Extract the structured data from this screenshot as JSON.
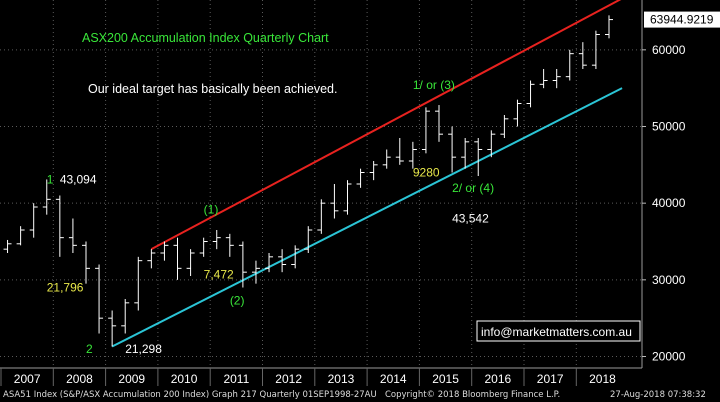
{
  "chart_data": {
    "type": "candlestick",
    "title": "ASX200 Accumulation Index Quarterly Chart",
    "subtitle": "Our ideal target has basically been achieved.",
    "x_ticks": [
      "2007",
      "2008",
      "2009",
      "2010",
      "2011",
      "2012",
      "2013",
      "2014",
      "2015",
      "2016",
      "2017",
      "2018"
    ],
    "y_ticks": [
      20000,
      30000,
      40000,
      50000,
      60000
    ],
    "y_tick_labels": [
      "20000",
      "30000",
      "40000",
      "50000",
      "60000"
    ],
    "ylim": [
      18500,
      66500
    ],
    "last_value": 63944.9219,
    "last_value_label": "63944.9219",
    "colors": {
      "background": "#000000",
      "bars": "#ffffff",
      "upper_channel": "#e8221f",
      "lower_channel": "#2bc5d6",
      "grid": "#5a5a5a",
      "annotation_green": "#39e639",
      "annotation_yellow": "#e8e84a",
      "annotation_white": "#ffffff"
    },
    "quarters": [
      {
        "q": "2007Q1",
        "o": 34000,
        "h": 35200,
        "l": 33500,
        "c": 34700
      },
      {
        "q": "2007Q2",
        "o": 34700,
        "h": 37000,
        "l": 34500,
        "c": 36500
      },
      {
        "q": "2007Q3",
        "o": 36500,
        "h": 40000,
        "l": 35500,
        "c": 39500
      },
      {
        "q": "2007Q4",
        "o": 39500,
        "h": 43094,
        "l": 38500,
        "c": 40500
      },
      {
        "q": "2008Q1",
        "o": 40500,
        "h": 41000,
        "l": 33000,
        "c": 35500
      },
      {
        "q": "2008Q2",
        "o": 35500,
        "h": 38000,
        "l": 33500,
        "c": 34500
      },
      {
        "q": "2008Q3",
        "o": 34500,
        "h": 35000,
        "l": 29500,
        "c": 31500
      },
      {
        "q": "2008Q4",
        "o": 31500,
        "h": 32000,
        "l": 23000,
        "c": 25000
      },
      {
        "q": "2009Q1",
        "o": 25000,
        "h": 26000,
        "l": 21298,
        "c": 24000
      },
      {
        "q": "2009Q2",
        "o": 24000,
        "h": 27500,
        "l": 23000,
        "c": 27000
      },
      {
        "q": "2009Q3",
        "o": 27000,
        "h": 33000,
        "l": 26000,
        "c": 32500
      },
      {
        "q": "2009Q4",
        "o": 32500,
        "h": 34000,
        "l": 31500,
        "c": 33500
      },
      {
        "q": "2010Q1",
        "o": 33500,
        "h": 35000,
        "l": 32500,
        "c": 34500
      },
      {
        "q": "2010Q2",
        "o": 34500,
        "h": 35500,
        "l": 30000,
        "c": 31500
      },
      {
        "q": "2010Q3",
        "o": 31500,
        "h": 34000,
        "l": 30500,
        "c": 33500
      },
      {
        "q": "2010Q4",
        "o": 33500,
        "h": 35500,
        "l": 33000,
        "c": 35000
      },
      {
        "q": "2011Q1",
        "o": 35000,
        "h": 36500,
        "l": 34000,
        "c": 35500
      },
      {
        "q": "2011Q2",
        "o": 35500,
        "h": 36000,
        "l": 33000,
        "c": 34500
      },
      {
        "q": "2011Q3",
        "o": 34500,
        "h": 35000,
        "l": 29000,
        "c": 31000
      },
      {
        "q": "2011Q4",
        "o": 31000,
        "h": 32500,
        "l": 29500,
        "c": 31500
      },
      {
        "q": "2012Q1",
        "o": 31500,
        "h": 33500,
        "l": 31000,
        "c": 33000
      },
      {
        "q": "2012Q2",
        "o": 33000,
        "h": 34000,
        "l": 31000,
        "c": 32000
      },
      {
        "q": "2012Q3",
        "o": 32000,
        "h": 34500,
        "l": 31500,
        "c": 34000
      },
      {
        "q": "2012Q4",
        "o": 34000,
        "h": 37000,
        "l": 33500,
        "c": 36500
      },
      {
        "q": "2013Q1",
        "o": 36500,
        "h": 40500,
        "l": 36000,
        "c": 40000
      },
      {
        "q": "2013Q2",
        "o": 40000,
        "h": 42500,
        "l": 38000,
        "c": 39000
      },
      {
        "q": "2013Q3",
        "o": 39000,
        "h": 43000,
        "l": 38500,
        "c": 42500
      },
      {
        "q": "2013Q4",
        "o": 42500,
        "h": 44500,
        "l": 42000,
        "c": 44000
      },
      {
        "q": "2014Q1",
        "o": 44000,
        "h": 45500,
        "l": 43000,
        "c": 45000
      },
      {
        "q": "2014Q2",
        "o": 45000,
        "h": 47000,
        "l": 44500,
        "c": 46000
      },
      {
        "q": "2014Q3",
        "o": 46000,
        "h": 48500,
        "l": 45000,
        "c": 45500
      },
      {
        "q": "2014Q4",
        "o": 45500,
        "h": 48000,
        "l": 44500,
        "c": 47000
      },
      {
        "q": "2015Q1",
        "o": 47000,
        "h": 52500,
        "l": 46500,
        "c": 52000
      },
      {
        "q": "2015Q2",
        "o": 52000,
        "h": 52800,
        "l": 48000,
        "c": 49000
      },
      {
        "q": "2015Q3",
        "o": 49000,
        "h": 50000,
        "l": 44000,
        "c": 46000
      },
      {
        "q": "2015Q4",
        "o": 46000,
        "h": 48500,
        "l": 44500,
        "c": 48000
      },
      {
        "q": "2016Q1",
        "o": 48000,
        "h": 48500,
        "l": 43542,
        "c": 47000
      },
      {
        "q": "2016Q2",
        "o": 47000,
        "h": 49500,
        "l": 46000,
        "c": 49000
      },
      {
        "q": "2016Q3",
        "o": 49000,
        "h": 51500,
        "l": 48500,
        "c": 51000
      },
      {
        "q": "2016Q4",
        "o": 51000,
        "h": 53500,
        "l": 50000,
        "c": 53000
      },
      {
        "q": "2017Q1",
        "o": 53000,
        "h": 56000,
        "l": 52500,
        "c": 55500
      },
      {
        "q": "2017Q2",
        "o": 55500,
        "h": 57500,
        "l": 55000,
        "c": 56000
      },
      {
        "q": "2017Q3",
        "o": 56000,
        "h": 57500,
        "l": 55000,
        "c": 56500
      },
      {
        "q": "2017Q4",
        "o": 56500,
        "h": 60000,
        "l": 56000,
        "c": 59500
      },
      {
        "q": "2018Q1",
        "o": 59500,
        "h": 61000,
        "l": 57500,
        "c": 58000
      },
      {
        "q": "2018Q2",
        "o": 58000,
        "h": 62500,
        "l": 57500,
        "c": 62000
      },
      {
        "q": "2018Q3",
        "o": 62000,
        "h": 64500,
        "l": 61500,
        "c": 63944.9219
      }
    ],
    "channels": [
      {
        "name": "upper",
        "points": [
          [
            "2009Q4",
            34000
          ],
          [
            "2018Q4",
            66700
          ]
        ]
      },
      {
        "name": "lower",
        "points": [
          [
            "2009Q1",
            21300
          ],
          [
            "2018Q4",
            55000
          ]
        ]
      }
    ],
    "annotations": [
      {
        "text": "1",
        "at": [
          "2007Q4",
          43094
        ],
        "color": "annotation_green"
      },
      {
        "text": "43,094",
        "at": [
          "2008Q1",
          43094
        ],
        "color": "annotation_white"
      },
      {
        "text": "21,796",
        "at": [
          "2007Q4",
          29000
        ],
        "color": "annotation_yellow"
      },
      {
        "text": "2",
        "at": [
          "2008Q3",
          21000
        ],
        "color": "annotation_green"
      },
      {
        "text": "21,298",
        "at": [
          "2009Q2",
          21000
        ],
        "color": "annotation_white"
      },
      {
        "text": "(1)",
        "at": [
          "2010Q4",
          39200
        ],
        "color": "annotation_green"
      },
      {
        "text": "7,472",
        "at": [
          "2010Q4",
          30700
        ],
        "color": "annotation_yellow"
      },
      {
        "text": "(2)",
        "at": [
          "2011Q2",
          27300
        ],
        "color": "annotation_green"
      },
      {
        "text": "1/ or (3)",
        "at": [
          "2014Q4",
          55400
        ],
        "color": "annotation_green"
      },
      {
        "text": "9280",
        "at": [
          "2014Q4",
          44000
        ],
        "color": "annotation_yellow"
      },
      {
        "text": "2/ or (4)",
        "at": [
          "2015Q3",
          42000
        ],
        "color": "annotation_green"
      },
      {
        "text": "43,542",
        "at": [
          "2015Q3",
          38000
        ],
        "color": "annotation_white"
      }
    ],
    "contact": "info@marketmatters.com.au"
  },
  "footer": {
    "index": "ASA51 Index (S&P/ASX Accumulation 200 Index) Graph 217  Quarterly 01SEP1998-27AU",
    "copyright": "Copyright© 2018 Bloomberg Finance L.P.",
    "timestamp": "27-Aug-2018 07:38:32"
  }
}
